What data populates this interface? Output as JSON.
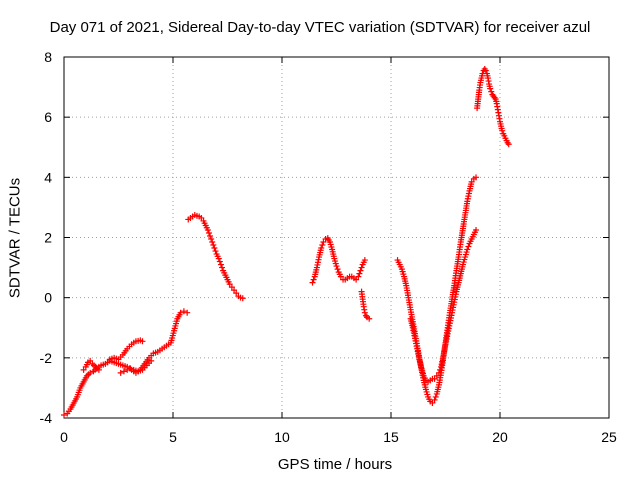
{
  "chart_data": {
    "type": "scatter",
    "title": "Day 071 of 2021, Sidereal Day-to-day VTEC variation (SDTVAR) for receiver azul",
    "xlabel": "GPS time / hours",
    "ylabel": "SDTVAR / TECUs",
    "xlim": [
      0,
      25
    ],
    "ylim": [
      -4,
      8
    ],
    "xticks": [
      0,
      5,
      10,
      15,
      20,
      25
    ],
    "yticks": [
      -4,
      -2,
      0,
      2,
      4,
      6,
      8
    ],
    "grid": true,
    "marker": "+",
    "color": "#ff0000",
    "segments": [
      {
        "x": [
          0.0,
          0.15,
          0.3,
          0.45,
          0.6,
          0.75,
          0.9,
          1.05,
          1.2,
          1.35,
          1.5,
          1.7,
          1.9,
          2.1,
          2.3,
          2.5,
          2.7,
          2.9,
          3.1,
          3.3,
          3.5,
          3.7,
          3.9,
          4.1,
          4.3,
          4.5,
          4.7,
          4.9,
          5.05,
          5.2,
          5.35,
          5.5,
          5.65
        ],
        "y": [
          -3.9,
          -3.85,
          -3.7,
          -3.5,
          -3.3,
          -3.0,
          -2.8,
          -2.6,
          -2.5,
          -2.45,
          -2.35,
          -2.25,
          -2.2,
          -2.1,
          -2.15,
          -2.2,
          -2.25,
          -2.3,
          -2.4,
          -2.5,
          -2.4,
          -2.2,
          -2.0,
          -1.85,
          -1.8,
          -1.7,
          -1.6,
          -1.5,
          -1.1,
          -0.7,
          -0.5,
          -0.45,
          -0.5
        ]
      },
      {
        "x": [
          0.9,
          1.0,
          1.1,
          1.2,
          1.3,
          1.45,
          1.6
        ],
        "y": [
          -2.4,
          -2.3,
          -2.15,
          -2.1,
          -2.2,
          -2.3,
          -2.4
        ]
      },
      {
        "x": [
          2.1,
          2.3,
          2.5,
          2.7,
          2.9,
          3.1,
          3.3,
          3.5,
          3.6
        ],
        "y": [
          -2.05,
          -2.0,
          -2.05,
          -1.9,
          -1.7,
          -1.55,
          -1.45,
          -1.42,
          -1.45
        ]
      },
      {
        "x": [
          2.6,
          2.75,
          2.9,
          3.05,
          3.2,
          3.4,
          3.6,
          3.8,
          4.0
        ],
        "y": [
          -2.5,
          -2.45,
          -2.4,
          -2.35,
          -2.4,
          -2.45,
          -2.4,
          -2.25,
          -2.1
        ]
      },
      {
        "x": [
          5.7,
          5.8,
          5.9,
          6.0,
          6.1,
          6.2,
          6.3,
          6.4,
          6.5,
          6.6,
          6.7,
          6.8,
          6.9,
          7.0,
          7.1,
          7.2,
          7.3,
          7.4,
          7.5,
          7.6,
          7.7,
          7.8,
          7.9,
          8.0,
          8.1,
          8.2
        ],
        "y": [
          2.6,
          2.65,
          2.7,
          2.75,
          2.72,
          2.7,
          2.65,
          2.55,
          2.4,
          2.25,
          2.05,
          1.85,
          1.65,
          1.45,
          1.3,
          1.1,
          0.9,
          0.75,
          0.6,
          0.45,
          0.35,
          0.25,
          0.15,
          0.05,
          0.0,
          -0.02
        ]
      },
      {
        "x": [
          11.4,
          11.5,
          11.6,
          11.7,
          11.8,
          11.9,
          12.0,
          12.1,
          12.2,
          12.3,
          12.4,
          12.5,
          12.6,
          12.7,
          12.8,
          12.9,
          13.0,
          13.1,
          13.2,
          13.3,
          13.4,
          13.5,
          13.6,
          13.7,
          13.8
        ],
        "y": [
          0.5,
          0.7,
          1.0,
          1.35,
          1.65,
          1.85,
          1.95,
          1.98,
          1.85,
          1.6,
          1.3,
          1.05,
          0.85,
          0.7,
          0.6,
          0.6,
          0.65,
          0.7,
          0.7,
          0.65,
          0.6,
          0.7,
          0.9,
          1.1,
          1.25
        ]
      },
      {
        "x": [
          13.65,
          13.7,
          13.75,
          13.8,
          13.85,
          13.9,
          14.0
        ],
        "y": [
          0.2,
          -0.05,
          -0.3,
          -0.5,
          -0.6,
          -0.65,
          -0.7
        ]
      },
      {
        "x": [
          15.3,
          15.4,
          15.5,
          15.6,
          15.7,
          15.8,
          15.9,
          16.0,
          16.1,
          16.2,
          16.3,
          16.4,
          16.5,
          16.6,
          16.7,
          16.8,
          16.9,
          17.0,
          17.1,
          17.2,
          17.3,
          17.4,
          17.5,
          17.6,
          17.7,
          17.8,
          17.9,
          18.0,
          18.1,
          18.2,
          18.3,
          18.4,
          18.5,
          18.6,
          18.7,
          18.8,
          18.9
        ],
        "y": [
          1.25,
          1.1,
          0.95,
          0.7,
          0.4,
          0.0,
          -0.4,
          -0.8,
          -1.2,
          -1.6,
          -2.0,
          -2.4,
          -2.75,
          -3.05,
          -3.3,
          -3.45,
          -3.5,
          -3.4,
          -3.2,
          -2.9,
          -2.5,
          -2.0,
          -1.5,
          -1.0,
          -0.5,
          -0.05,
          0.4,
          0.9,
          1.35,
          1.85,
          2.3,
          2.75,
          3.2,
          3.55,
          3.85,
          3.95,
          4.0
        ]
      },
      {
        "x": [
          15.9,
          16.0,
          16.1,
          16.2,
          16.3,
          16.4,
          16.5,
          16.6,
          16.7,
          16.8,
          16.9,
          17.0,
          17.1,
          17.2,
          17.3,
          17.4,
          17.5,
          17.6,
          17.7,
          17.8,
          17.9,
          18.0,
          18.1,
          18.2,
          18.3,
          18.4,
          18.5,
          18.6,
          18.7,
          18.8,
          18.9
        ],
        "y": [
          -0.7,
          -1.0,
          -1.35,
          -1.7,
          -2.05,
          -2.35,
          -2.6,
          -2.75,
          -2.8,
          -2.75,
          -2.7,
          -2.7,
          -2.6,
          -2.5,
          -2.3,
          -1.95,
          -1.55,
          -1.2,
          -0.85,
          -0.5,
          -0.15,
          0.2,
          0.5,
          0.8,
          1.1,
          1.35,
          1.6,
          1.8,
          1.95,
          2.1,
          2.25
        ]
      },
      {
        "x": [
          18.95,
          19.0,
          19.05,
          19.1,
          19.15,
          19.2,
          19.25,
          19.3,
          19.35,
          19.4,
          19.45,
          19.5,
          19.55,
          19.6,
          19.65,
          19.7,
          19.75,
          19.8,
          19.85,
          19.9,
          19.95,
          20.0,
          20.05,
          20.1,
          20.15,
          20.2,
          20.25,
          20.3,
          20.35,
          20.4
        ],
        "y": [
          6.3,
          6.6,
          6.9,
          7.15,
          7.3,
          7.45,
          7.55,
          7.6,
          7.55,
          7.45,
          7.3,
          7.1,
          6.95,
          6.85,
          6.75,
          6.7,
          6.65,
          6.6,
          6.45,
          6.25,
          6.05,
          5.85,
          5.7,
          5.55,
          5.45,
          5.38,
          5.3,
          5.22,
          5.15,
          5.1
        ]
      }
    ]
  }
}
